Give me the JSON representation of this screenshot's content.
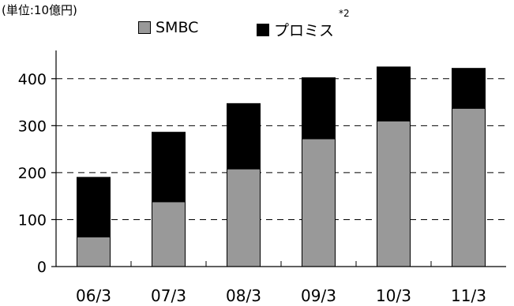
{
  "unit_label": "(単位:10億円)",
  "colors": {
    "smbc": "#999999",
    "promise": "#000000",
    "grid": "#000000"
  },
  "chart_data": {
    "type": "bar",
    "stacked": true,
    "categories": [
      "06/3",
      "07/3",
      "08/3",
      "09/3",
      "10/3",
      "11/3"
    ],
    "series": [
      {
        "name": "SMBC",
        "values": [
          63,
          138,
          208,
          272,
          310,
          337
        ]
      },
      {
        "name": "プロミス",
        "values": [
          127,
          148,
          139,
          130,
          115,
          85
        ]
      }
    ],
    "totals": [
      190,
      286,
      347,
      402,
      425,
      422
    ],
    "legend_note": "*2",
    "y_ticks": [
      0,
      100,
      200,
      300,
      400
    ],
    "ylim": [
      0,
      450
    ],
    "grid": "dashed horizontal",
    "legend_position": "top"
  }
}
